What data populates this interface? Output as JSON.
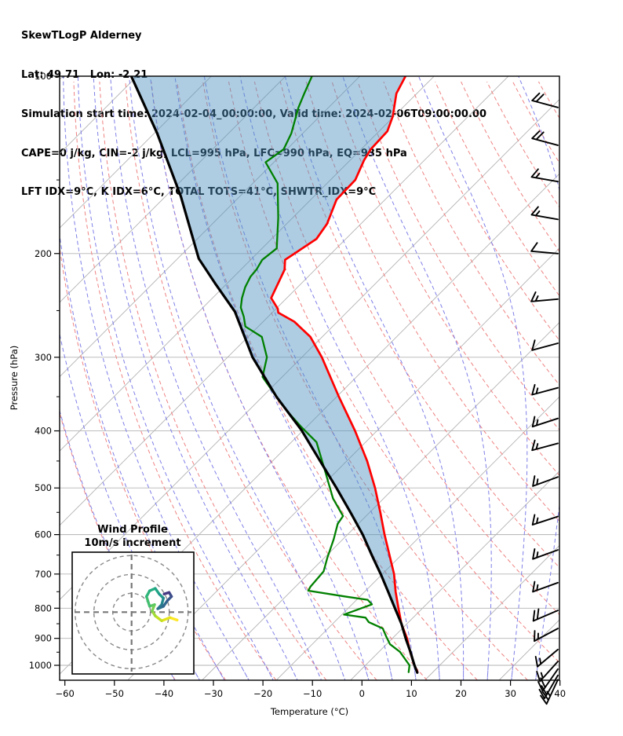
{
  "header": {
    "lines": [
      "SkewTLogP Alderney",
      "Lat: 49.71   Lon: -2.21",
      "Simulation start time: 2024-02-04_00:00:00, Valid time: 2024-02-06T09:00:00.00",
      "CAPE=0 j/kg, CIN=-2 j/kg, LCL=995 hPa, LFC=990 hPa, EQ=935 hPa",
      "LFT IDX=9°C, K IDX=6°C, TOTAL TOTS=41°C, SHWTR_IDX=9°C"
    ]
  },
  "plot": {
    "x_axis": {
      "label": "Temperature (°C)",
      "ticks": [
        -60,
        -50,
        -40,
        -30,
        -20,
        -10,
        0,
        10,
        20,
        30,
        40
      ],
      "min": -60,
      "max": 40
    },
    "y_axis": {
      "label": "Pressure (hPa)",
      "ticks": [
        100,
        200,
        300,
        400,
        500,
        600,
        700,
        800,
        900,
        1000
      ],
      "minor_ticks": [
        150,
        250,
        350,
        450,
        550,
        650,
        750,
        850,
        950
      ],
      "min": 100,
      "max": 1060
    },
    "colors": {
      "temperature": "#ff0000",
      "dewpoint": "#008000",
      "parcel": "#000000",
      "shading": "#4b90bf",
      "isotherm": "#b3b3b3",
      "grid": "#b3b3b3",
      "dry_adiabat": "#ef8282",
      "moist_adiabat": "#7f7fe8",
      "barb": "#000000",
      "spine": "#000000"
    },
    "families": {
      "isotherms": {
        "min": -180,
        "max": 45,
        "step": 15
      },
      "dry_adiabats_theta": {
        "min": -40,
        "max": 170,
        "step": 10
      },
      "moist_adiabats_thetaw": {
        "min": -40,
        "max": 35,
        "step": 5
      }
    }
  },
  "chart_data": {
    "type": "skewt-logp",
    "title": "SkewTLogP Alderney",
    "station": {
      "lat": 49.71,
      "lon": -2.21
    },
    "indices": {
      "CAPE_j_kg": 0,
      "CIN_j_kg": -2,
      "LCL_hPa": 995,
      "LFC_hPa": 990,
      "EQ_hPa": 935,
      "LFT_IDX_C": 9,
      "K_IDX_C": 6,
      "TOTAL_TOTS_C": 41,
      "SHWTR_IDX_C": 9
    },
    "temperature_profile_p_T": [
      [
        1025,
        11.6
      ],
      [
        1000,
        10.1
      ],
      [
        950,
        7.4
      ],
      [
        900,
        4.8
      ],
      [
        850,
        1.6
      ],
      [
        800,
        -1.2
      ],
      [
        750,
        -4.1
      ],
      [
        700,
        -6.9
      ],
      [
        650,
        -10.5
      ],
      [
        600,
        -14.4
      ],
      [
        550,
        -18.4
      ],
      [
        500,
        -22.9
      ],
      [
        450,
        -28.3
      ],
      [
        400,
        -35.0
      ],
      [
        350,
        -43.1
      ],
      [
        300,
        -52.1
      ],
      [
        277,
        -57.3
      ],
      [
        261,
        -62.7
      ],
      [
        252,
        -67.2
      ],
      [
        248,
        -67.9
      ],
      [
        238,
        -70.7
      ],
      [
        213,
        -72.0
      ],
      [
        205,
        -73.3
      ],
      [
        189,
        -69.9
      ],
      [
        178,
        -69.9
      ],
      [
        162,
        -71.4
      ],
      [
        150,
        -70.4
      ],
      [
        139,
        -71.4
      ],
      [
        133,
        -71.6
      ],
      [
        124,
        -70.8
      ],
      [
        117,
        -71.8
      ],
      [
        107,
        -74.3
      ],
      [
        100,
        -74.9
      ]
    ],
    "dewpoint_profile_p_T": [
      [
        1027,
        9.9
      ],
      [
        1000,
        9.1
      ],
      [
        949,
        5.3
      ],
      [
        921,
        2.2
      ],
      [
        893,
        0.3
      ],
      [
        866,
        -1.5
      ],
      [
        845,
        -5.2
      ],
      [
        830,
        -6.5
      ],
      [
        820,
        -11.3
      ],
      [
        788,
        -7.1
      ],
      [
        774,
        -8.6
      ],
      [
        765,
        -13.3
      ],
      [
        747,
        -21.9
      ],
      [
        735,
        -22.0
      ],
      [
        693,
        -21.5
      ],
      [
        656,
        -22.7
      ],
      [
        611,
        -24.0
      ],
      [
        575,
        -25.4
      ],
      [
        558,
        -25.4
      ],
      [
        521,
        -29.9
      ],
      [
        466,
        -35.6
      ],
      [
        418,
        -41.2
      ],
      [
        394,
        -46.4
      ],
      [
        373,
        -50.9
      ],
      [
        350,
        -55.7
      ],
      [
        324,
        -61.3
      ],
      [
        300,
        -63.2
      ],
      [
        277,
        -67.1
      ],
      [
        266,
        -71.9
      ],
      [
        256,
        -73.6
      ],
      [
        247,
        -75.5
      ],
      [
        238,
        -76.6
      ],
      [
        228,
        -77.5
      ],
      [
        219,
        -77.9
      ],
      [
        213,
        -77.7
      ],
      [
        205,
        -77.9
      ],
      [
        196,
        -76.6
      ],
      [
        174,
        -80.6
      ],
      [
        160,
        -83.7
      ],
      [
        152,
        -85.6
      ],
      [
        140,
        -91.0
      ],
      [
        133,
        -89.2
      ],
      [
        125,
        -89.9
      ],
      [
        113,
        -92.1
      ],
      [
        107,
        -92.9
      ],
      [
        100,
        -93.8
      ]
    ],
    "parcel_profile_p_T": [
      [
        1029,
        11.7
      ],
      [
        1000,
        10.1
      ],
      [
        949,
        7.4
      ],
      [
        903,
        4.7
      ],
      [
        850,
        1.6
      ],
      [
        800,
        -1.9
      ],
      [
        750,
        -5.6
      ],
      [
        700,
        -9.6
      ],
      [
        653,
        -13.8
      ],
      [
        600,
        -18.8
      ],
      [
        551,
        -24.3
      ],
      [
        500,
        -30.7
      ],
      [
        450,
        -37.8
      ],
      [
        399,
        -45.9
      ],
      [
        350,
        -55.7
      ],
      [
        300,
        -66.1
      ],
      [
        251,
        -76.1
      ],
      [
        226,
        -83.7
      ],
      [
        204,
        -90.9
      ],
      [
        160,
        -103.3
      ],
      [
        125,
        -117.0
      ],
      [
        100,
        -130.3
      ]
    ],
    "wind_barbs_p_spd_dir": [
      [
        113,
        20,
        285
      ],
      [
        131,
        20,
        285
      ],
      [
        151,
        15,
        280
      ],
      [
        175,
        15,
        280
      ],
      [
        200,
        10,
        275
      ],
      [
        239,
        15,
        265
      ],
      [
        284,
        10,
        255
      ],
      [
        338,
        15,
        255
      ],
      [
        381,
        15,
        252
      ],
      [
        420,
        15,
        255
      ],
      [
        479,
        15,
        250
      ],
      [
        559,
        15,
        252
      ],
      [
        637,
        15,
        250
      ],
      [
        724,
        15,
        250
      ],
      [
        807,
        20,
        247
      ],
      [
        866,
        15,
        242
      ],
      [
        940,
        15,
        230
      ],
      [
        985,
        15,
        222
      ],
      [
        1015,
        20,
        215
      ],
      [
        1040,
        20,
        210
      ],
      [
        1058,
        25,
        205
      ]
    ],
    "hodograph": {
      "title": "Wind Profile",
      "subtitle": "10m/s increment",
      "ring_interval_ms": 10,
      "rings_ms": [
        10,
        20,
        30
      ],
      "trace_uv_ms": [
        [
          24.2,
          -4.2
        ],
        [
          20.3,
          -2.9
        ],
        [
          16.0,
          -4.6
        ],
        [
          12.6,
          -2.0
        ],
        [
          10.9,
          0.6
        ],
        [
          12.2,
          4.0
        ],
        [
          9.6,
          3.1
        ],
        [
          7.9,
          8.3
        ],
        [
          9.6,
          11.3
        ],
        [
          12.6,
          12.6
        ],
        [
          14.7,
          9.6
        ],
        [
          16.9,
          7.4
        ],
        [
          16.0,
          4.0
        ],
        [
          13.9,
          1.8
        ],
        [
          16.9,
          3.1
        ],
        [
          19.0,
          6.1
        ],
        [
          21.2,
          8.3
        ],
        [
          19.9,
          10.4
        ],
        [
          17.3,
          9.6
        ]
      ],
      "trace_palette": [
        "#fde725",
        "#e5e419",
        "#c2df23",
        "#9fda3a",
        "#7ad151",
        "#5ec962",
        "#44bf70",
        "#31b57b",
        "#26ad81",
        "#21a585",
        "#1f988b",
        "#23898e",
        "#277e8e",
        "#2c728e",
        "#31688e",
        "#375a8c",
        "#3e4c8a",
        "#453781",
        "#440154"
      ]
    }
  }
}
